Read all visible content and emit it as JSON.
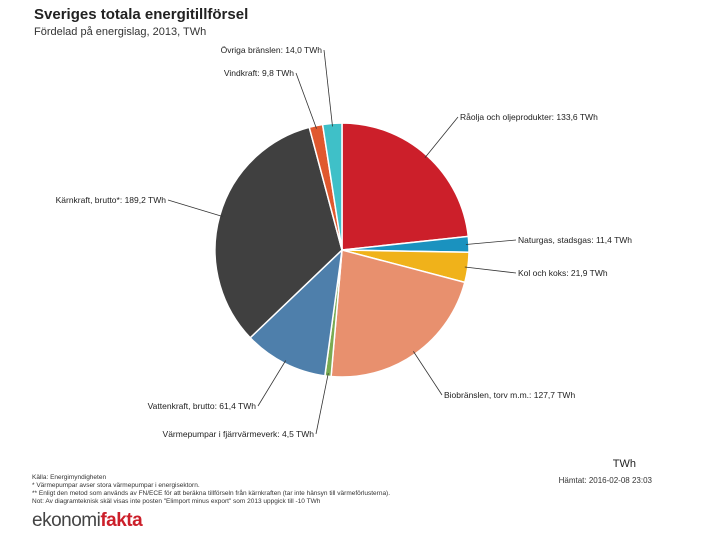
{
  "chart_data": {
    "type": "pie",
    "title": "Sveriges totala energitillförsel",
    "subtitle": "Fördelad på energislag, 2013, TWh",
    "unit": "TWh",
    "slices": [
      {
        "label": "Råolja och oljeprodukter: 133,6 TWh",
        "value": 133.6,
        "color": "#cc1f2a"
      },
      {
        "label": "Naturgas, stadsgas: 11,4 TWh",
        "value": 11.4,
        "color": "#1a92bf"
      },
      {
        "label": "Kol och koks: 21,9 TWh",
        "value": 21.9,
        "color": "#f0b21a"
      },
      {
        "label": "Biobränslen, torv m.m.: 127,7 TWh",
        "value": 127.7,
        "color": "#e8906e"
      },
      {
        "label": "Värmepumpar i fjärrvärmeverk: 4,5 TWh",
        "value": 4.5,
        "color": "#7aab52"
      },
      {
        "label": "Vattenkraft, brutto: 61,4 TWh",
        "value": 61.4,
        "color": "#4e7fab"
      },
      {
        "label": "Kärnkraft, brutto*: 189,2 TWh",
        "value": 189.2,
        "color": "#404040"
      },
      {
        "label": "Vindkraft: 9,8 TWh",
        "value": 9.8,
        "color": "#e0582e"
      },
      {
        "label": "Övriga bränslen: 14,0 TWh",
        "value": 14.0,
        "color": "#3fc0c8"
      }
    ]
  },
  "footer": {
    "source": "Källa: Energimyndigheten",
    "note1": "* Värmepumpar avser stora värmepumpar i energisektorn.",
    "note2": "** Enligt den metod som används av FN/ECE för att beräkna tillförseln från kärnkraften (tar inte hänsyn till värmeförlusterna).",
    "note3": "Not: Av diagramteknisk skäl visas inte posten \"Elimport minus export\" som 2013 uppgick till -10 TWh",
    "fetched": "Hämtat: 2016-02-08 23:03",
    "logo_part1": "ekonomi",
    "logo_part2": "fakta"
  }
}
